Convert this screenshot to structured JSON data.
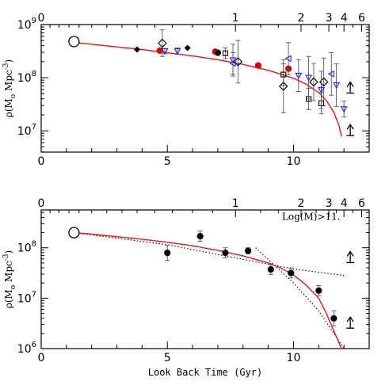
{
  "chart_data": [
    {
      "type": "scatter",
      "panel": "top",
      "xlabel": "",
      "ylabel": "ρ*(M☉ Mpc⁻³)",
      "ylabel_text": "ρ",
      "ylabel_rest": "(M",
      "ylabel_sub": "o",
      "ylabel_tail": " Mpc",
      "ylabel_sup": "-3",
      "ylabel_close": ")",
      "xlim": [
        0,
        13
      ],
      "ylim_log10": [
        6.6,
        9.0
      ],
      "x_ticks": [
        "0",
        "5",
        "10"
      ],
      "x_tick_values": [
        0,
        5,
        10
      ],
      "y_ticks": [
        {
          "base": "10",
          "exp": "7",
          "value": 7
        },
        {
          "base": "10",
          "exp": "8",
          "value": 8
        },
        {
          "base": "10",
          "exp": "9",
          "value": 9
        }
      ],
      "top_axis_ticks": [
        {
          "label": "0",
          "x": 0
        },
        {
          "label": "1",
          "x": 7.7
        },
        {
          "label": "2",
          "x": 10.3
        },
        {
          "label": "3",
          "x": 11.4
        },
        {
          "label": "4",
          "x": 12.0
        },
        {
          "label": "6",
          "x": 12.7
        }
      ],
      "model_curve": [
        [
          1.3,
          8.66
        ],
        [
          2.0,
          8.63
        ],
        [
          3.0,
          8.58
        ],
        [
          4.0,
          8.53
        ],
        [
          5.0,
          8.47
        ],
        [
          6.0,
          8.41
        ],
        [
          7.0,
          8.34
        ],
        [
          8.0,
          8.25
        ],
        [
          9.0,
          8.14
        ],
        [
          10.0,
          7.99
        ],
        [
          10.5,
          7.88
        ],
        [
          11.0,
          7.72
        ],
        [
          11.3,
          7.57
        ],
        [
          11.6,
          7.35
        ],
        [
          11.8,
          7.1
        ],
        [
          11.9,
          6.9
        ]
      ],
      "series": [
        {
          "marker": "open-circle-large",
          "color": "#000000",
          "points": [
            [
              1.3,
              8.68,
              null
            ]
          ]
        },
        {
          "marker": "filled-diamond",
          "color": "#000000",
          "points": [
            [
              3.8,
              8.53,
              null
            ],
            [
              5.8,
              8.56,
              null
            ]
          ]
        },
        {
          "marker": "filled-circle",
          "color": "#dd0000",
          "points": [
            [
              4.7,
              8.51,
              null
            ],
            [
              6.9,
              8.49,
              null
            ],
            [
              8.6,
              8.23,
              null
            ],
            [
              9.8,
              8.17,
              null
            ]
          ]
        },
        {
          "marker": "filled-circle",
          "color": "#000000",
          "points": [
            [
              7.0,
              8.47,
              null
            ]
          ]
        },
        {
          "marker": "open-diamond",
          "color": "#000000",
          "points": [
            [
              4.8,
              8.65,
              0.25
            ],
            [
              7.8,
              8.3,
              0.4
            ],
            [
              9.6,
              7.84,
              0.5
            ],
            [
              10.8,
              7.92,
              0.35
            ],
            [
              11.2,
              7.92,
              0.45
            ]
          ]
        },
        {
          "marker": "open-square",
          "color": "#000000",
          "points": [
            [
              7.3,
              8.46,
              0.1
            ],
            [
              9.6,
              8.06,
              0.2
            ],
            [
              10.6,
              7.6,
              0.2
            ],
            [
              11.1,
              7.52,
              0.2
            ]
          ]
        },
        {
          "marker": "open-triangle-down",
          "color": "#2222ee",
          "points": [
            [
              4.9,
              8.5,
              0.05
            ],
            [
              5.4,
              8.5,
              0.06
            ],
            [
              7.6,
              8.33,
              0.3
            ],
            [
              10.2,
              8.04,
              0.3
            ],
            [
              10.6,
              8.0,
              0.4
            ],
            [
              11.1,
              7.77,
              0.35
            ],
            [
              11.7,
              7.86,
              0.4
            ],
            [
              12.0,
              7.41,
              0.15
            ]
          ]
        },
        {
          "marker": "open-triangle-left",
          "color": "#2222ee",
          "points": [
            [
              7.6,
              8.27,
              0.2
            ],
            [
              9.8,
              8.36,
              0.3
            ],
            [
              11.5,
              8.07,
              0.4
            ]
          ]
        }
      ],
      "lower_limit_arrows": [
        [
          12.25,
          7.8
        ],
        [
          12.25,
          7.0
        ]
      ]
    },
    {
      "type": "scatter",
      "panel": "bottom",
      "xlabel": "Look Back Time (Gyr)",
      "ylabel": "ρ*(M☉ Mpc⁻³)",
      "ylabel_text": "ρ",
      "ylabel_rest": "(M",
      "ylabel_sub": "o",
      "ylabel_tail": " Mpc",
      "ylabel_sup": "-3",
      "ylabel_close": ")",
      "xlim": [
        0,
        13
      ],
      "ylim_log10": [
        6.0,
        8.75
      ],
      "x_ticks": [
        "0",
        "5",
        "10"
      ],
      "x_tick_values": [
        0,
        5,
        10
      ],
      "y_ticks": [
        {
          "base": "10",
          "exp": "6",
          "value": 6
        },
        {
          "base": "10",
          "exp": "7",
          "value": 7
        },
        {
          "base": "10",
          "exp": "8",
          "value": 8
        }
      ],
      "top_axis_ticks": [
        {
          "label": "0",
          "x": 0
        },
        {
          "label": "1",
          "x": 7.7
        },
        {
          "label": "2",
          "x": 10.3
        },
        {
          "label": "3",
          "x": 11.4
        },
        {
          "label": "4",
          "x": 12.0
        },
        {
          "label": "6",
          "x": 12.7
        }
      ],
      "annotation": "Log(M)>11.",
      "model_curve": [
        [
          1.3,
          8.3
        ],
        [
          2.0,
          8.27
        ],
        [
          3.0,
          8.22
        ],
        [
          4.0,
          8.17
        ],
        [
          5.0,
          8.11
        ],
        [
          6.0,
          8.04
        ],
        [
          7.0,
          7.95
        ],
        [
          8.0,
          7.84
        ],
        [
          9.0,
          7.7
        ],
        [
          9.5,
          7.6
        ],
        [
          10.0,
          7.46
        ],
        [
          10.5,
          7.26
        ],
        [
          11.0,
          7.0
        ],
        [
          11.3,
          6.7
        ],
        [
          11.6,
          6.35
        ],
        [
          11.9,
          6.0
        ]
      ],
      "dotted_lines": [
        [
          [
            1.3,
            8.3
          ],
          [
            5.0,
            8.06
          ],
          [
            10.0,
            7.58
          ],
          [
            12.0,
            7.45
          ]
        ],
        [
          [
            8.5,
            8.0
          ],
          [
            10.0,
            7.3
          ],
          [
            11.0,
            6.75
          ],
          [
            11.6,
            6.3
          ],
          [
            12.0,
            6.0
          ]
        ]
      ],
      "series": [
        {
          "marker": "open-circle-large",
          "color": "#000000",
          "points": [
            [
              1.3,
              8.3,
              null
            ]
          ]
        },
        {
          "marker": "filled-circle",
          "color": "#000000",
          "points": [
            [
              5.0,
              7.9,
              0.15
            ],
            [
              6.3,
              8.23,
              0.1
            ],
            [
              7.3,
              7.9,
              0.1
            ],
            [
              8.2,
              7.94,
              0.06
            ],
            [
              9.1,
              7.57,
              0.1
            ],
            [
              9.9,
              7.5,
              0.1
            ],
            [
              11.0,
              7.15,
              0.1
            ],
            [
              11.6,
              6.6,
              0.15
            ]
          ]
        }
      ],
      "lower_limit_arrows": [
        [
          12.25,
          7.8
        ],
        [
          12.25,
          6.5
        ]
      ]
    }
  ]
}
